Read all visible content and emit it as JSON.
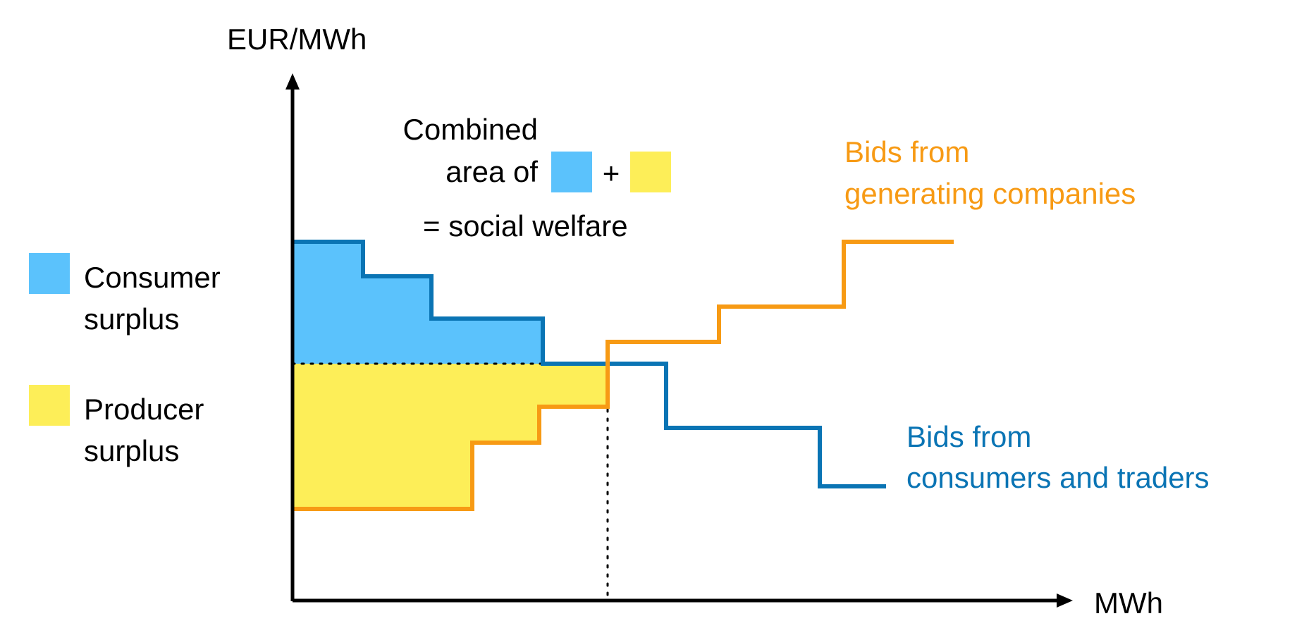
{
  "colors": {
    "consumer": "#5bc2fc",
    "producer": "#fdee58",
    "demand_line": "#0a74b4",
    "supply_line": "#f79a14",
    "axis": "#000000"
  },
  "axes": {
    "y_label": "EUR/MWh",
    "x_label": "MWh"
  },
  "annotation": {
    "line1": "Combined",
    "line2": "area of",
    "plus": "+",
    "line3": "= social welfare"
  },
  "legend": {
    "items": [
      {
        "line1": "Consumer",
        "line2": "surplus",
        "color_key": "consumer"
      },
      {
        "line1": "Producer",
        "line2": "surplus",
        "color_key": "producer"
      }
    ]
  },
  "curves": {
    "supply": {
      "label_line1": "Bids from",
      "label_line2": "generating companies"
    },
    "demand": {
      "label_line1": "Bids from",
      "label_line2": "consumers and traders"
    }
  }
}
